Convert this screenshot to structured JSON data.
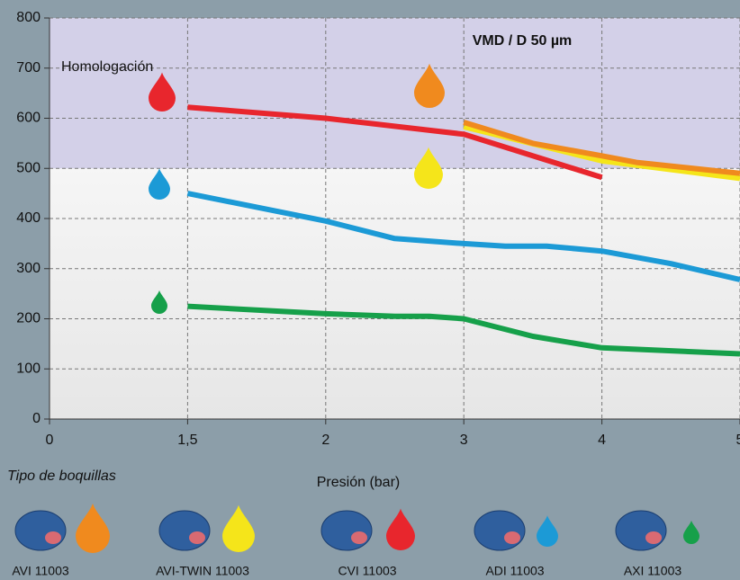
{
  "chart_data": {
    "type": "line",
    "annotations": {
      "band_label": "Homologación",
      "corner_label": "VMD / D 50 µm"
    },
    "band": [
      500,
      800
    ],
    "xlabel": "Presión (bar)",
    "xlim": [
      0,
      5
    ],
    "xticks": [
      0,
      {
        "value": 1.5,
        "label": "1,5"
      },
      2,
      3,
      4,
      5
    ],
    "ylim": [
      0,
      800
    ],
    "yticks": [
      0,
      100,
      200,
      300,
      400,
      500,
      600,
      700,
      800
    ],
    "grid": true,
    "series": [
      {
        "name": "CVI 11003",
        "color": "#e8262d",
        "x": [
          1.5,
          2,
          3,
          4
        ],
        "values": [
          622,
          600,
          568,
          482
        ]
      },
      {
        "name": "AVI 11003",
        "color": "#f08a1e",
        "x": [
          3,
          3.5,
          4,
          4.25,
          5
        ],
        "values": [
          592,
          550,
          525,
          512,
          490
        ]
      },
      {
        "name": "AVI-TWIN 11003",
        "color": "#f5e51a",
        "x": [
          3,
          4,
          5
        ],
        "values": [
          583,
          515,
          480
        ]
      },
      {
        "name": "ADI 11003",
        "color": "#1c9ad6",
        "x": [
          1.5,
          2,
          2.5,
          3,
          3.3,
          3.6,
          4,
          4.5,
          5
        ],
        "values": [
          450,
          395,
          360,
          350,
          345,
          345,
          335,
          310,
          278
        ]
      },
      {
        "name": "AXI 11003",
        "color": "#16a04a",
        "x": [
          1.5,
          2,
          2.5,
          2.75,
          3,
          3.5,
          4,
          5
        ],
        "values": [
          225,
          210,
          205,
          205,
          200,
          165,
          142,
          130
        ]
      }
    ],
    "legend_title": "Tipo de boquillas"
  }
}
